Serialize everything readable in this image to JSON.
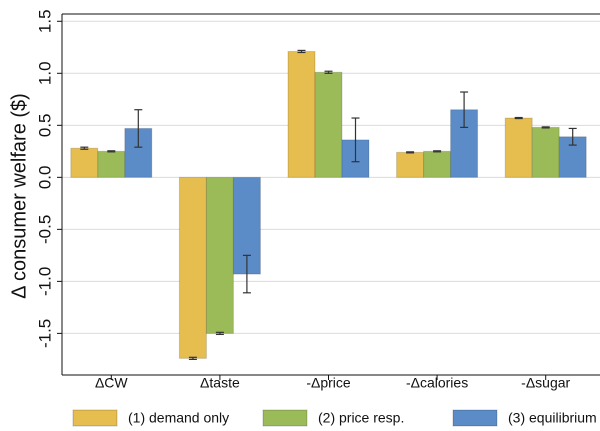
{
  "chart_data": {
    "type": "bar",
    "y_label": "Δ consumer welfare ($)",
    "categories": [
      "ΔCW",
      "Δtaste",
      "-Δprice",
      "-Δcalories",
      "-Δsugar"
    ],
    "series": [
      {
        "name": "(1) demand only",
        "color": "#e6bd4f",
        "values": [
          0.28,
          -1.74,
          1.21,
          0.24,
          0.57
        ],
        "errors": [
          0.01,
          0.01,
          0.01,
          0.005,
          0.005
        ]
      },
      {
        "name": "(2) price resp.",
        "color": "#9bbb59",
        "values": [
          0.25,
          -1.5,
          1.01,
          0.25,
          0.48
        ],
        "errors": [
          0.005,
          0.01,
          0.01,
          0.005,
          0.005
        ]
      },
      {
        "name": "(3) equilibrium",
        "color": "#5b8cc8",
        "values": [
          0.47,
          -0.93,
          0.36,
          0.65,
          0.39
        ],
        "errors": [
          0.18,
          0.18,
          0.21,
          0.17,
          0.08
        ]
      }
    ],
    "ylim": [
      -1.9,
      1.57
    ],
    "yticks": [
      1.5,
      {
        "value": 1,
        "label": "1.0"
      },
      0.5,
      {
        "value": 0,
        "label": "0.0"
      },
      -0.5,
      {
        "value": -1,
        "label": "-1.0"
      },
      -1.5
    ],
    "grid": true
  }
}
